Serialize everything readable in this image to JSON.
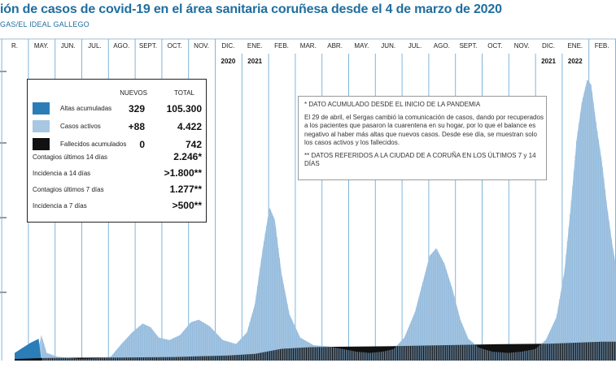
{
  "header": {
    "title": "ión de casos de covid-19 en el área sanitaria coruñesa desde el 4 de marzo de 2020",
    "source": "GAS/EL IDEAL GALLEGO"
  },
  "legend": {
    "col_new": "NUEVOS",
    "col_total": "TOTAL",
    "rows": [
      {
        "label": "Altas acumuladas",
        "new": "329",
        "total": "105.300",
        "color": "#2b7db8"
      },
      {
        "label": "Casos activos",
        "new": "+88",
        "total": "4.422",
        "color": "#a7c7e3"
      },
      {
        "label": "Fallecidos acumulados",
        "new": "0",
        "total": "742",
        "color": "#111111"
      }
    ],
    "stats": [
      {
        "label": "Contagios últimos 14 días",
        "value": "2.246*"
      },
      {
        "label": "Incidencia a 14 días",
        "value": ">1.800**"
      },
      {
        "label": "Contagios últimos 7 días",
        "value": "1.277**"
      },
      {
        "label": "Incidencia a 7 días",
        "value": ">500**"
      }
    ]
  },
  "notes": {
    "note1": "* DATO ACUMULADO DESDE EL INICIO DE LA PANDEMIA",
    "note2": "El 29 de abril, el Sergas cambió la comunicación de casos, dando por recuperados a los pacientes que pasaron la cuarentena en su hogar, por lo que el balance es negativo al haber más altas que nuevos casos. Desde ese día, se muestran solo los casos activos y los fallecidos.",
    "note3": "** DATOS REFERIDOS A LA CIUDAD DE A CORUÑA EN LOS ÚLTIMOS 7 y 14 DÍAS"
  },
  "chart_data": {
    "type": "area",
    "months": [
      "R.",
      "MAY.",
      "JUN.",
      "JUL.",
      "AGO.",
      "SEPT.",
      "OCT.",
      "NOV.",
      "DIC.",
      "ENE.",
      "FEB.",
      "MAR.",
      "ABR.",
      "MAY.",
      "JUN.",
      "JUL.",
      "AGO.",
      "SEPT.",
      "OCT.",
      "NOV.",
      "DIC.",
      "ENE.",
      "FEB."
    ],
    "years": [
      {
        "label": "2020",
        "month_index": 8
      },
      {
        "label": "2021",
        "month_index": 9
      },
      {
        "label": "2021",
        "month_index": 20
      },
      {
        "label": "2022",
        "month_index": 21
      }
    ],
    "ylim": [
      0,
      11000
    ],
    "x_range": [
      0,
      22.9
    ],
    "series": [
      {
        "name": "Altas acumuladas",
        "color": "#2b7db8",
        "points": [
          [
            0.0,
            300
          ],
          [
            0.3,
            500
          ],
          [
            0.6,
            700
          ],
          [
            0.9,
            850
          ],
          [
            1.0,
            0
          ]
        ]
      },
      {
        "name": "Casos activos",
        "color": "#a7c7e3",
        "points": [
          [
            0.0,
            100
          ],
          [
            0.5,
            200
          ],
          [
            0.9,
            500
          ],
          [
            1.0,
            1000
          ],
          [
            1.2,
            300
          ],
          [
            1.6,
            150
          ],
          [
            2.5,
            60
          ],
          [
            3.2,
            100
          ],
          [
            3.6,
            150
          ],
          [
            4.0,
            650
          ],
          [
            4.4,
            1100
          ],
          [
            4.8,
            1450
          ],
          [
            5.1,
            1300
          ],
          [
            5.4,
            900
          ],
          [
            5.8,
            800
          ],
          [
            6.2,
            1000
          ],
          [
            6.6,
            1500
          ],
          [
            6.9,
            1600
          ],
          [
            7.3,
            1350
          ],
          [
            7.8,
            800
          ],
          [
            8.3,
            650
          ],
          [
            8.7,
            1100
          ],
          [
            9.0,
            2200
          ],
          [
            9.3,
            4400
          ],
          [
            9.55,
            6000
          ],
          [
            9.75,
            5500
          ],
          [
            10.0,
            3400
          ],
          [
            10.3,
            1800
          ],
          [
            10.7,
            900
          ],
          [
            11.2,
            600
          ],
          [
            11.8,
            550
          ],
          [
            12.3,
            450
          ],
          [
            12.8,
            350
          ],
          [
            13.3,
            300
          ],
          [
            13.8,
            350
          ],
          [
            14.2,
            450
          ],
          [
            14.6,
            900
          ],
          [
            15.0,
            1900
          ],
          [
            15.3,
            3100
          ],
          [
            15.55,
            4100
          ],
          [
            15.8,
            4400
          ],
          [
            16.1,
            3800
          ],
          [
            16.4,
            2800
          ],
          [
            16.7,
            1600
          ],
          [
            17.0,
            850
          ],
          [
            17.4,
            500
          ],
          [
            17.9,
            350
          ],
          [
            18.5,
            300
          ],
          [
            19.0,
            350
          ],
          [
            19.5,
            450
          ],
          [
            19.9,
            800
          ],
          [
            20.3,
            1700
          ],
          [
            20.6,
            3500
          ],
          [
            20.85,
            6200
          ],
          [
            21.05,
            8600
          ],
          [
            21.25,
            10100
          ],
          [
            21.45,
            11000
          ],
          [
            21.6,
            10800
          ],
          [
            21.8,
            9200
          ],
          [
            22.0,
            7800
          ],
          [
            22.2,
            6000
          ],
          [
            22.4,
            4500
          ],
          [
            22.55,
            3600
          ],
          [
            22.7,
            4000
          ],
          [
            22.9,
            4300
          ]
        ]
      },
      {
        "name": "Fallecidos acumulados",
        "color": "#111111",
        "points": [
          [
            0.0,
            60
          ],
          [
            1.0,
            100
          ],
          [
            2.0,
            110
          ],
          [
            4.0,
            120
          ],
          [
            6.0,
            140
          ],
          [
            8.0,
            200
          ],
          [
            9.0,
            260
          ],
          [
            10.0,
            460
          ],
          [
            11.0,
            520
          ],
          [
            12.0,
            540
          ],
          [
            14.0,
            560
          ],
          [
            16.0,
            600
          ],
          [
            18.0,
            640
          ],
          [
            20.0,
            660
          ],
          [
            21.0,
            700
          ],
          [
            22.0,
            740
          ],
          [
            22.9,
            742
          ]
        ]
      }
    ]
  }
}
